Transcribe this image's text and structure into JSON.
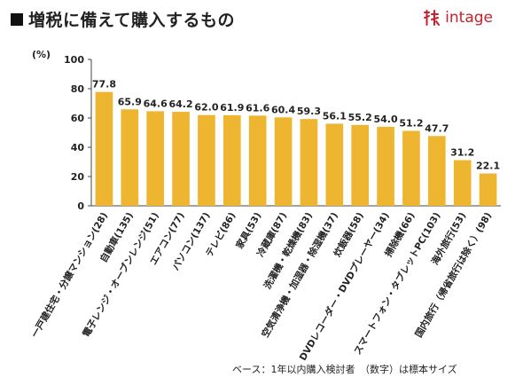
{
  "header": {
    "title": "増税に備えて購入するもの",
    "logo_text": "intage",
    "logo_icon": "intage-logo-icon"
  },
  "chart_data": {
    "type": "bar",
    "title": "増税に備えて購入するもの",
    "unit_label": "(%)",
    "ylim": [
      0,
      100
    ],
    "yticks": [
      0,
      20,
      40,
      60,
      80,
      100
    ],
    "grid": false,
    "bar_color": "#EDB530",
    "categories": [
      "一戸建住宅・分譲マンション(28)",
      "自動車(135)",
      "電子レンジ・オーブンレンジ(51)",
      "エアコン(77)",
      "パソコン(137)",
      "テレビ(86)",
      "家具(53)",
      "冷蔵庫(87)",
      "洗濯機・乾燥機(83)",
      "空気清浄機・加湿器・除湿機(37)",
      "炊飯器(58)",
      "DVDレコーダー・DVDプレーヤー(34)",
      "掃除機(66)",
      "スマートフォン・タブレットPC(103)",
      "海外旅行(53)",
      "国内旅行（帰省旅行は除く）(98)"
    ],
    "values": [
      77.8,
      65.9,
      64.6,
      64.2,
      62.0,
      61.9,
      61.6,
      60.4,
      59.3,
      56.1,
      55.2,
      54.0,
      51.2,
      47.7,
      31.2,
      22.1
    ],
    "value_labels": [
      "77.8",
      "65.9",
      "64.6",
      "64.2",
      "62.0",
      "61.9",
      "61.6",
      "60.4",
      "59.3",
      "56.1",
      "55.2",
      "54.0",
      "51.2",
      "47.7",
      "31.2",
      "22.1"
    ]
  },
  "footnote": "ベース：1年以内購入検討者　（数字）は標本サイズ"
}
